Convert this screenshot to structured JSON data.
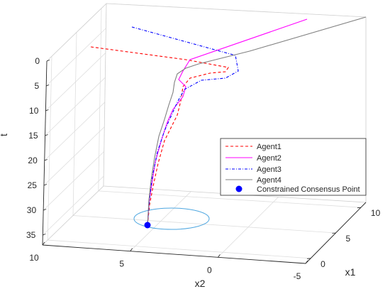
{
  "chart_data": {
    "type": "line",
    "title": "",
    "axes": {
      "x1": {
        "label": "x1",
        "ticks": [
          "0",
          "5",
          "10"
        ],
        "range": [
          -1,
          11
        ]
      },
      "x2": {
        "label": "x2",
        "ticks": [
          "10",
          "5",
          "0",
          "-5"
        ],
        "range": [
          -5,
          10
        ]
      },
      "t": {
        "label": "t",
        "ticks": [
          "0",
          "5",
          "10",
          "15",
          "20",
          "25",
          "30",
          "35"
        ],
        "range": [
          0,
          37
        ],
        "reversed": true
      }
    },
    "grid": true,
    "legend_position": "right",
    "series": [
      {
        "name": "Agent1",
        "color": "#ff0000",
        "style": "dashed"
      },
      {
        "name": "Agent2",
        "color": "#ff00ff",
        "style": "solid"
      },
      {
        "name": "Agent3",
        "color": "#0000ff",
        "style": "dash-dot"
      },
      {
        "name": "Agent4",
        "color": "#808080",
        "style": "solid"
      }
    ],
    "consensus_point": {
      "name": "Constrained Consensus Point",
      "color": "#0000ff",
      "t": 33
    },
    "constraint_circle": {
      "color": "#4da6e0",
      "t": 33
    }
  }
}
